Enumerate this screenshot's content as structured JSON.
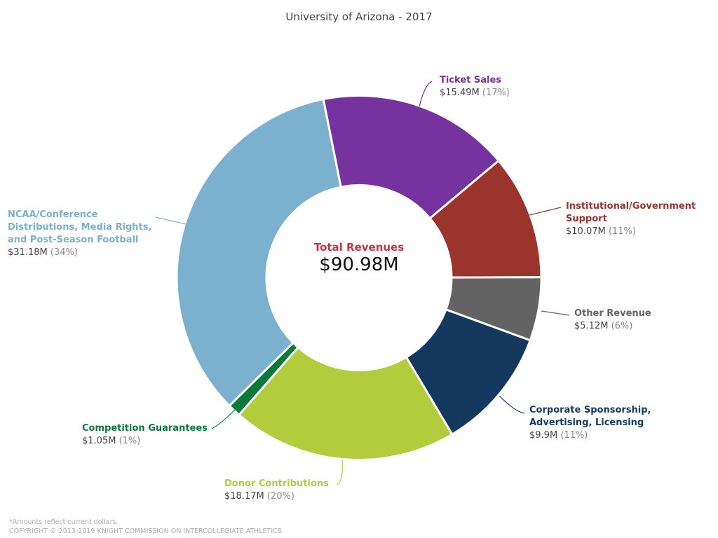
{
  "chart_data": {
    "type": "pie",
    "title": "University of Arizona - 2017",
    "center_label": "Total Revenues",
    "center_value": "$90.98M",
    "slices": [
      {
        "name": "Ticket Sales",
        "value": 15.49,
        "value_label": "$15.49M",
        "percent": "(17%)",
        "color": "#7633a0"
      },
      {
        "name": "Institutional/Government Support",
        "value": 10.07,
        "value_label": "$10.07M",
        "percent": "(11%)",
        "color": "#9a342c"
      },
      {
        "name": "Other Revenue",
        "value": 5.12,
        "value_label": "$5.12M",
        "percent": "(6%)",
        "color": "#636363"
      },
      {
        "name": "Corporate Sponsorship, Advertising, Licensing",
        "value": 9.9,
        "value_label": "$9.9M",
        "percent": "(11%)",
        "color": "#15385f"
      },
      {
        "name": "Donor Contributions",
        "value": 18.17,
        "value_label": "$18.17M",
        "percent": "(20%)",
        "color": "#b2cc3c"
      },
      {
        "name": "Competition Guarantees",
        "value": 1.05,
        "value_label": "$1.05M",
        "percent": "(1%)",
        "color": "#0a7a3a"
      },
      {
        "name": "NCAA/Conference Distributions, Media Rights, and Post-Season Football",
        "value": 31.18,
        "value_label": "$31.18M",
        "percent": "(34%)",
        "color": "#7bb0cf"
      }
    ],
    "footnote": "*Amounts reflect current dollars.",
    "copyright": "COPYRIGHT © 2013-2019 KNIGHT COMMISSION ON INTERCOLLEGIATE ATHLETICS"
  }
}
